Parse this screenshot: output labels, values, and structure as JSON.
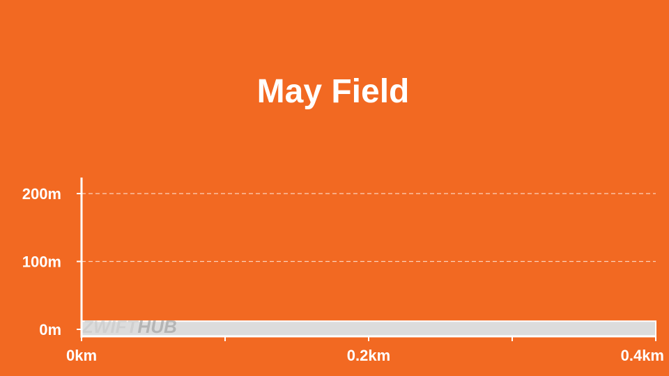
{
  "colors": {
    "background": "#f26922",
    "text": "#ffffff",
    "axis": "#ffffff",
    "grid": "#fbd2bc",
    "area_fill": "#dcdcdc",
    "watermark_a": "#c8c8c8",
    "watermark_b": "#9a9a9a"
  },
  "watermark": {
    "part1": "ZWIFT",
    "part2": "HUB"
  },
  "chart_data": {
    "type": "area",
    "title": "May Field",
    "xlabel": "",
    "ylabel": "",
    "x_unit": "km",
    "y_unit": "m",
    "xlim": [
      0,
      0.4
    ],
    "ylim": [
      0,
      230
    ],
    "x_ticks": [
      0,
      0.1,
      0.2,
      0.3,
      0.4
    ],
    "x_tick_labels": [
      "0km",
      "",
      "0.2km",
      "",
      "0.4km"
    ],
    "y_ticks": [
      0,
      100,
      200
    ],
    "y_tick_labels": [
      "0m",
      "100m",
      "200m"
    ],
    "grid": {
      "y": true,
      "x": false,
      "style": "dashed"
    },
    "legend": "none",
    "series": [
      {
        "x": [
          0,
          0.1,
          0.2,
          0.3,
          0.4
        ],
        "y": [
          12,
          12,
          12,
          12,
          12
        ]
      }
    ]
  }
}
